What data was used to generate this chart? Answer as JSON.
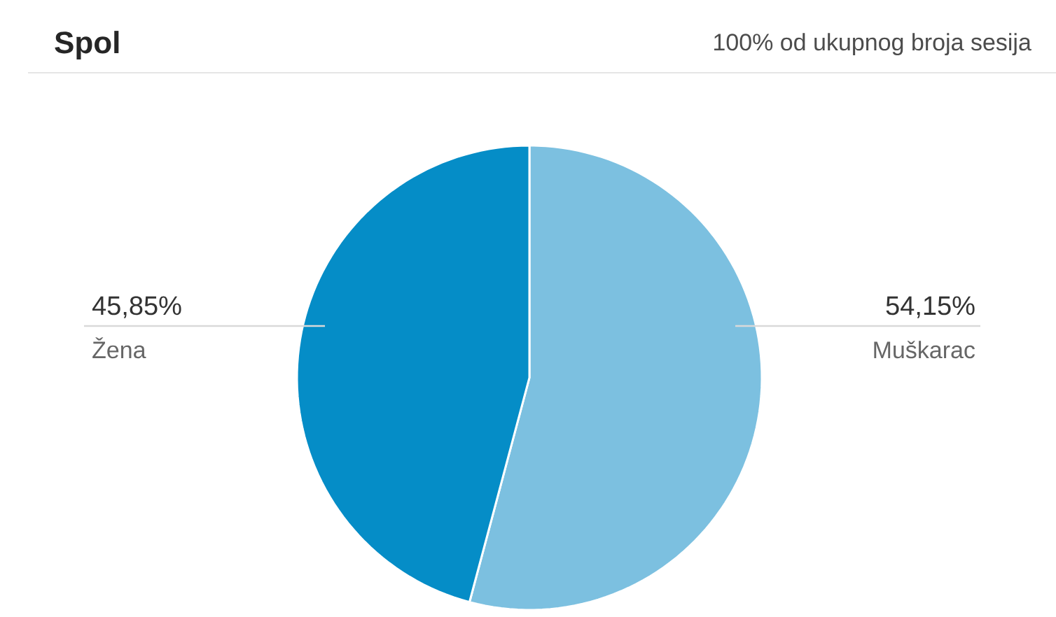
{
  "chart_data": {
    "type": "pie",
    "title": "Spol",
    "subtitle": "100% od ukupnog broja sesija",
    "categories": [
      "Muškarac",
      "Žena"
    ],
    "values": [
      54.15,
      45.85
    ],
    "colors": [
      "#7cc0e0",
      "#058dc7"
    ],
    "value_labels": [
      "54,15%",
      "45,85%"
    ]
  }
}
